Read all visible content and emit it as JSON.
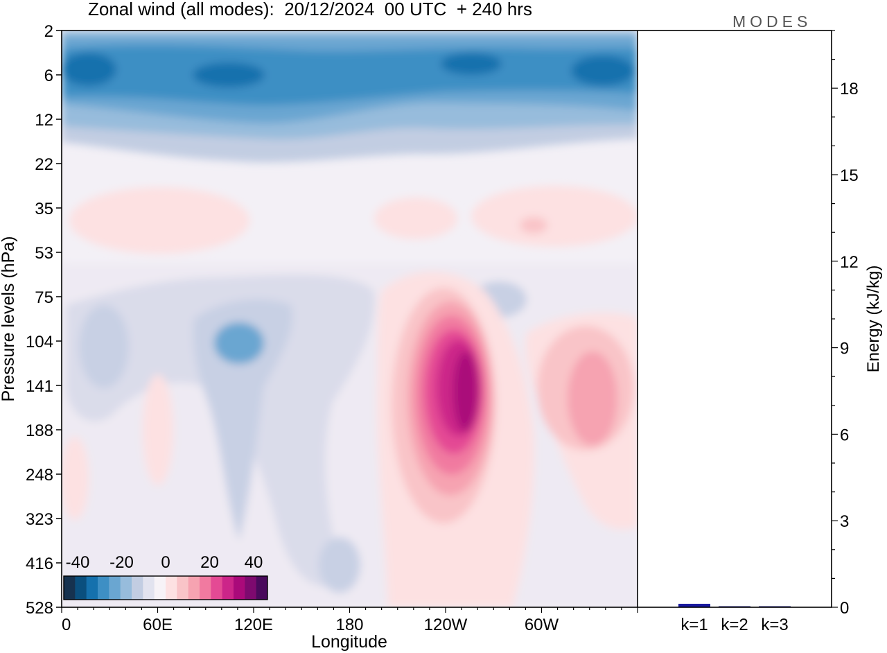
{
  "chart_data": [
    {
      "type": "heatmap",
      "title": "Zonal wind (all modes):  20/12/2024  00 UTC  + 240 hrs",
      "xlabel": "Longitude",
      "ylabel": "Pressure levels (hPa)",
      "x_ticks": [
        "0",
        "60E",
        "120E",
        "180",
        "120W",
        "60W"
      ],
      "y_ticks": [
        "2",
        "6",
        "12",
        "22",
        "35",
        "53",
        "75",
        "104",
        "141",
        "188",
        "248",
        "323",
        "416",
        "528"
      ],
      "colorbar": {
        "tick_labels": [
          "-40",
          "-20",
          "0",
          "20",
          "40"
        ],
        "colors": [
          "#16324f",
          "#0a4f7e",
          "#1571ad",
          "#3e8fc4",
          "#6aa6d1",
          "#97bcdc",
          "#c2cde2",
          "#e2e3ef",
          "#f7f3f7",
          "#fde1e2",
          "#f9c4c8",
          "#f6a3b1",
          "#f17aa0",
          "#e44a94",
          "#cc2589",
          "#aa0a7a",
          "#7e0a6f",
          "#4a0a5c"
        ]
      },
      "features": [
        {
          "label": "easterly band",
          "lon": [
            0,
            360
          ],
          "level": [
            2,
            12
          ],
          "value": -25
        },
        {
          "label": "westerly core",
          "lon": [
            228,
            252
          ],
          "level": [
            104,
            248
          ],
          "value": 38
        },
        {
          "label": "westerly lobe",
          "lon": [
            320,
            340
          ],
          "level": [
            104,
            248
          ],
          "value": 22
        },
        {
          "label": "easterly lobe",
          "lon": [
            90,
            130
          ],
          "level": [
            75,
            141
          ],
          "value": -14
        }
      ]
    },
    {
      "type": "bar",
      "ylabel": "Energy (kJ/kg)",
      "categories": [
        "k=1",
        "k=2",
        "k=3"
      ],
      "values": [
        0.12,
        0.03,
        0.02
      ],
      "ylim": [
        0,
        20
      ],
      "y_ticks": [
        "0",
        "3",
        "6",
        "9",
        "12",
        "15",
        "18"
      ]
    }
  ],
  "brand": "MODES"
}
